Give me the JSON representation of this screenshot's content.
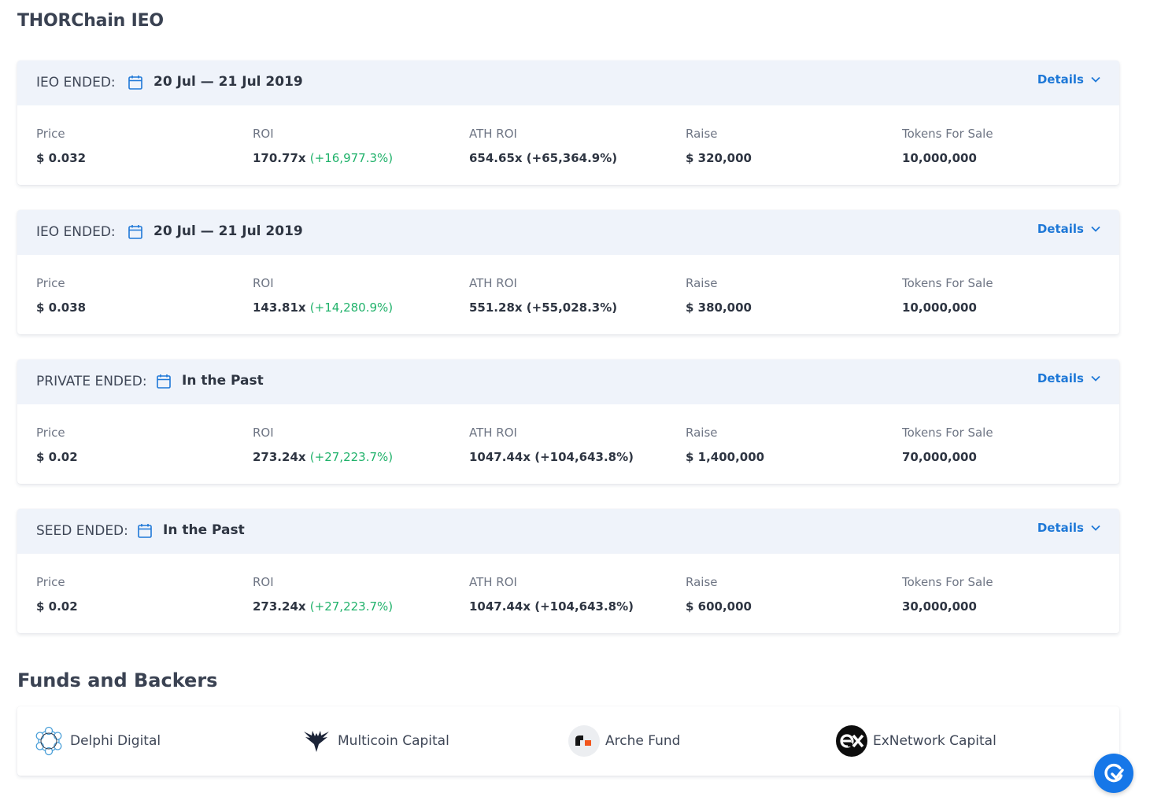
{
  "page": {
    "title": "THORChain IEO"
  },
  "rounds": [
    {
      "type": "IEO ENDED:",
      "date": "20 Jul — 21 Jul 2019",
      "details_label": "Details",
      "price_label": "Price",
      "price": "$ 0.032",
      "roi_label": "ROI",
      "roi": "170.77x",
      "roi_pct": "(+16,977.3%)",
      "ath_roi_label": "ATH ROI",
      "ath_roi": "654.65x (+65,364.9%)",
      "raise_label": "Raise",
      "raise": "$ 320,000",
      "tokens_label": "Tokens For Sale",
      "tokens": "10,000,000"
    },
    {
      "type": "IEO ENDED:",
      "date": "20 Jul — 21 Jul 2019",
      "details_label": "Details",
      "price_label": "Price",
      "price": "$ 0.038",
      "roi_label": "ROI",
      "roi": "143.81x",
      "roi_pct": "(+14,280.9%)",
      "ath_roi_label": "ATH ROI",
      "ath_roi": "551.28x (+55,028.3%)",
      "raise_label": "Raise",
      "raise": "$ 380,000",
      "tokens_label": "Tokens For Sale",
      "tokens": "10,000,000"
    },
    {
      "type": "PRIVATE ENDED:",
      "date": "In the Past",
      "details_label": "Details",
      "price_label": "Price",
      "price": "$ 0.02",
      "roi_label": "ROI",
      "roi": "273.24x",
      "roi_pct": "(+27,223.7%)",
      "ath_roi_label": "ATH ROI",
      "ath_roi": "1047.44x (+104,643.8%)",
      "raise_label": "Raise",
      "raise": "$ 1,400,000",
      "tokens_label": "Tokens For Sale",
      "tokens": "70,000,000"
    },
    {
      "type": "SEED ENDED:",
      "date": "In the Past",
      "details_label": "Details",
      "price_label": "Price",
      "price": "$ 0.02",
      "roi_label": "ROI",
      "roi": "273.24x",
      "roi_pct": "(+27,223.7%)",
      "ath_roi_label": "ATH ROI",
      "ath_roi": "1047.44x (+104,643.8%)",
      "raise_label": "Raise",
      "raise": "$ 600,000",
      "tokens_label": "Tokens For Sale",
      "tokens": "30,000,000"
    }
  ],
  "backers": {
    "title": "Funds and Backers",
    "items": [
      {
        "name": "Delphi Digital",
        "icon": "delphi-logo"
      },
      {
        "name": "Multicoin Capital",
        "icon": "multicoin-logo"
      },
      {
        "name": "Arche Fund",
        "icon": "arche-logo"
      },
      {
        "name": "ExNetwork Capital",
        "icon": "exnetwork-logo"
      }
    ]
  },
  "colors": {
    "accent": "#1e78d7",
    "positive": "#21b26b",
    "header_bg": "#eff3fa",
    "fab": "#1677e8"
  },
  "fab": {
    "icon": "chat-widget-icon"
  }
}
